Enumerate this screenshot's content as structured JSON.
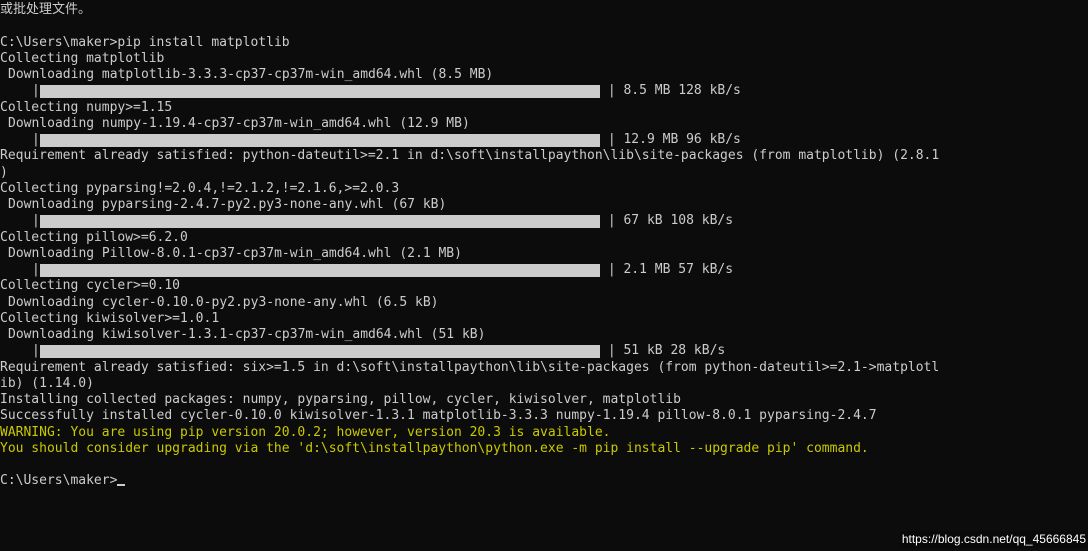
{
  "header_cn": "或批处理文件。",
  "prompt1_path": "C:\\Users\\maker>",
  "prompt1_cmd": "pip install matplotlib",
  "lines": {
    "collect_mpl": "Collecting matplotlib",
    "dl_mpl": "Downloading matplotlib-3.3.3-cp37-cp37m-win_amd64.whl (8.5 MB)",
    "bar_mpl": "| 8.5 MB 128 kB/s",
    "collect_numpy": "Collecting numpy>=1.15",
    "dl_numpy": "Downloading numpy-1.19.4-cp37-cp37m-win_amd64.whl (12.9 MB)",
    "bar_numpy": "| 12.9 MB 96 kB/s",
    "req_dateutil": "Requirement already satisfied: python-dateutil>=2.1 in d:\\soft\\installpaython\\lib\\site-packages (from matplotlib) (2.8.1",
    "req_dateutil2": ")",
    "collect_pyparsing": "Collecting pyparsing!=2.0.4,!=2.1.2,!=2.1.6,>=2.0.3",
    "dl_pyparsing": "Downloading pyparsing-2.4.7-py2.py3-none-any.whl (67 kB)",
    "bar_pyparsing": "| 67 kB 108 kB/s",
    "collect_pillow": "Collecting pillow>=6.2.0",
    "dl_pillow": "Downloading Pillow-8.0.1-cp37-cp37m-win_amd64.whl (2.1 MB)",
    "bar_pillow": "| 2.1 MB 57 kB/s",
    "collect_cycler": "Collecting cycler>=0.10",
    "dl_cycler": "Downloading cycler-0.10.0-py2.py3-none-any.whl (6.5 kB)",
    "collect_kiwi": "Collecting kiwisolver>=1.0.1",
    "dl_kiwi": "Downloading kiwisolver-1.3.1-cp37-cp37m-win_amd64.whl (51 kB)",
    "bar_kiwi": "| 51 kB 28 kB/s",
    "req_six": "Requirement already satisfied: six>=1.5 in d:\\soft\\installpaython\\lib\\site-packages (from python-dateutil>=2.1->matplotl",
    "req_six2": "ib) (1.14.0)",
    "install_pkgs": "Installing collected packages: numpy, pyparsing, pillow, cycler, kiwisolver, matplotlib",
    "success": "Successfully installed cycler-0.10.0 kiwisolver-1.3.1 matplotlib-3.3.3 numpy-1.19.4 pillow-8.0.1 pyparsing-2.4.7",
    "warn1": "WARNING: You are using pip version 20.0.2; however, version 20.3 is available.",
    "warn2": "You should consider upgrading via the 'd:\\soft\\installpaython\\python.exe -m pip install --upgrade pip' command."
  },
  "prompt2_path": "C:\\Users\\maker>",
  "watermark": "https://blog.csdn.net/qq_45666845",
  "colors": {
    "bg": "#0c0c0c",
    "fg": "#cccccc",
    "warn": "#c9c900",
    "bar": "#cccccc"
  }
}
